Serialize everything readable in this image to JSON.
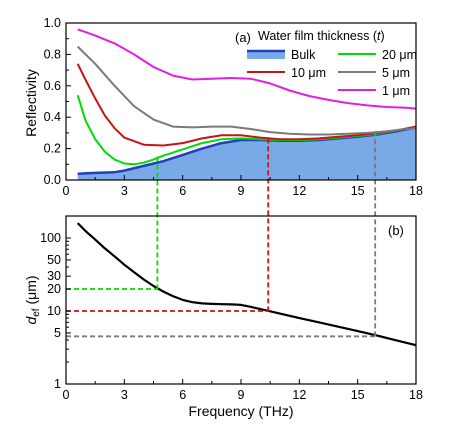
{
  "chart_data": [
    {
      "panel": "(a)",
      "type": "line",
      "xlabel": "",
      "ylabel": "Reflectivity",
      "xlim": [
        0,
        18
      ],
      "ylim": [
        0.0,
        1.0
      ],
      "xticks": [
        "0",
        "3",
        "6",
        "9",
        "12",
        "15",
        "18"
      ],
      "yticks": [
        "0.0",
        "0.2",
        "0.4",
        "0.6",
        "0.8",
        "1.0"
      ],
      "legend_title": "Water film thickness (t)",
      "legend_placement": "top-right",
      "series": [
        {
          "name": "Bulk",
          "color": "#1f3fbf",
          "fill": "#7aa9e8",
          "x": [
            0.6,
            1.5,
            2.5,
            3.0,
            4.0,
            5.0,
            6.0,
            7.0,
            8.0,
            9.0,
            10.0,
            11.0,
            12.0,
            13.0,
            14.0,
            15.0,
            16.0,
            17.0,
            18.0
          ],
          "y": [
            0.04,
            0.045,
            0.05,
            0.06,
            0.09,
            0.12,
            0.16,
            0.2,
            0.235,
            0.255,
            0.255,
            0.25,
            0.25,
            0.255,
            0.265,
            0.275,
            0.29,
            0.31,
            0.335
          ]
        },
        {
          "name": "20 μm",
          "color": "#00dd00",
          "x": [
            0.6,
            1.0,
            1.5,
            2.0,
            2.5,
            3.0,
            3.5,
            4.0,
            4.5,
            5.0,
            6.0,
            7.0,
            8.0,
            9.0,
            10.0,
            11.0,
            12.0,
            13.0,
            14.0,
            15.0,
            16.0,
            17.0,
            18.0
          ],
          "y": [
            0.54,
            0.38,
            0.26,
            0.18,
            0.13,
            0.105,
            0.1,
            0.11,
            0.13,
            0.155,
            0.195,
            0.235,
            0.26,
            0.265,
            0.26,
            0.255,
            0.255,
            0.26,
            0.27,
            0.28,
            0.295,
            0.315,
            0.34
          ]
        },
        {
          "name": "10 μm",
          "color": "#c81414",
          "x": [
            0.6,
            1.0,
            1.5,
            2.0,
            2.5,
            3.0,
            4.0,
            5.0,
            6.0,
            7.0,
            8.0,
            9.0,
            10.0,
            11.0,
            12.0,
            13.0,
            14.0,
            15.0,
            16.0,
            17.0,
            18.0
          ],
          "y": [
            0.74,
            0.64,
            0.52,
            0.41,
            0.33,
            0.27,
            0.225,
            0.22,
            0.235,
            0.265,
            0.285,
            0.285,
            0.27,
            0.26,
            0.26,
            0.265,
            0.275,
            0.285,
            0.3,
            0.315,
            0.34
          ]
        },
        {
          "name": "5 μm",
          "color": "#7a7a7a",
          "x": [
            0.6,
            1.5,
            2.5,
            3.5,
            4.5,
            5.5,
            6.5,
            7.5,
            8.5,
            9.5,
            10.5,
            11.5,
            12.5,
            13.5,
            14.5,
            15.5,
            16.5,
            17.5,
            18.0
          ],
          "y": [
            0.85,
            0.74,
            0.6,
            0.47,
            0.385,
            0.34,
            0.335,
            0.34,
            0.34,
            0.325,
            0.305,
            0.295,
            0.29,
            0.29,
            0.295,
            0.3,
            0.31,
            0.325,
            0.33
          ]
        },
        {
          "name": "1 μm",
          "color": "#e020e0",
          "x": [
            0.6,
            1.5,
            2.5,
            3.5,
            4.5,
            5.5,
            6.5,
            7.5,
            8.5,
            9.5,
            10.5,
            11.5,
            12.5,
            13.5,
            14.5,
            15.5,
            16.5,
            17.5,
            18.0
          ],
          "y": [
            0.96,
            0.92,
            0.87,
            0.8,
            0.72,
            0.665,
            0.64,
            0.645,
            0.65,
            0.645,
            0.615,
            0.57,
            0.535,
            0.51,
            0.49,
            0.475,
            0.465,
            0.46,
            0.455
          ]
        }
      ],
      "drop_lines": [
        {
          "color": "#00dd00",
          "x": 4.7,
          "y": 0.15
        },
        {
          "color": "#c81414",
          "x": 10.4,
          "y": 0.265
        },
        {
          "color": "#7a7a7a",
          "x": 15.9,
          "y": 0.31
        }
      ]
    },
    {
      "panel": "(b)",
      "type": "line",
      "xlabel": "Frequency (THz)",
      "ylabel": "d_ef (μm)",
      "ylabel_main": "d",
      "ylabel_sub": "ef",
      "ylabel_unit": " (μm)",
      "xlim": [
        0,
        18
      ],
      "ylim": [
        1,
        200
      ],
      "yscale": "log",
      "xticks": [
        "0",
        "3",
        "6",
        "9",
        "12",
        "15",
        "18"
      ],
      "yticks": [
        1,
        5,
        10,
        20,
        30,
        50,
        100
      ],
      "series": [
        {
          "name": "",
          "color": "#000000",
          "x": [
            0.6,
            1.0,
            1.5,
            2.0,
            2.5,
            3.0,
            3.5,
            4.0,
            4.5,
            5.0,
            5.5,
            6.0,
            6.5,
            7.0,
            7.5,
            8.0,
            8.5,
            9.0,
            9.5,
            10.0,
            10.5,
            11.0,
            12.0,
            13.0,
            14.0,
            15.0,
            16.0,
            17.0,
            18.0
          ],
          "y": [
            160,
            125,
            95,
            72,
            56,
            43,
            34,
            27,
            22,
            18.5,
            16,
            14.2,
            13.2,
            12.7,
            12.5,
            12.4,
            12.3,
            12.1,
            11.4,
            10.6,
            9.9,
            9.2,
            8.0,
            7.0,
            6.1,
            5.3,
            4.6,
            3.95,
            3.4
          ]
        }
      ],
      "guide_lines": [
        {
          "color": "#00dd00",
          "x": 4.7,
          "y": 20
        },
        {
          "color": "#c81414",
          "x": 10.4,
          "y": 10
        },
        {
          "color": "#7a7a7a",
          "x": 15.9,
          "y": 4.5
        }
      ]
    }
  ]
}
